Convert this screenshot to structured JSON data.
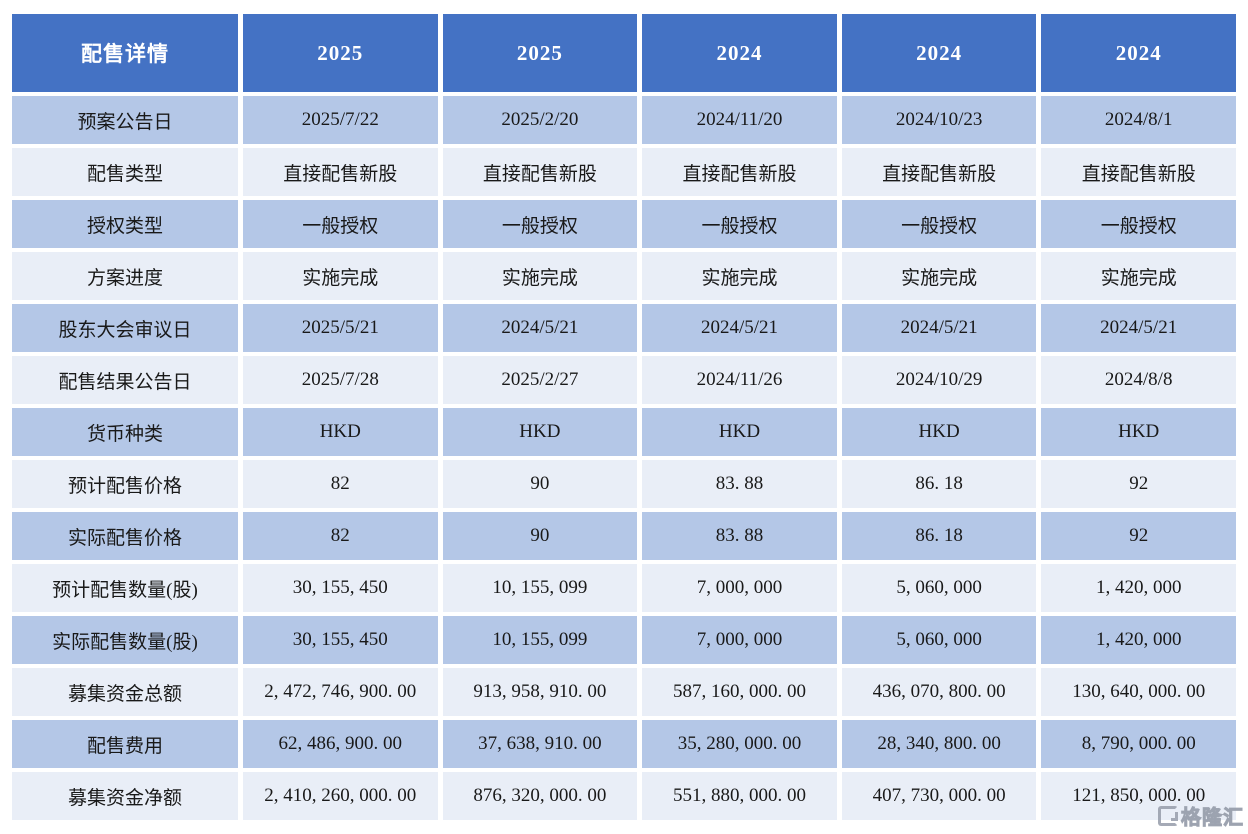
{
  "colors": {
    "header_bg": "#4472C4",
    "header_text": "#FFFFFF",
    "row_odd_bg": "#B4C7E7",
    "row_even_bg": "#E9EEF7",
    "cell_text": "#191919"
  },
  "watermark": {
    "text": "格隆汇"
  },
  "table": {
    "header": {
      "label": "配售详情",
      "columns": [
        "2025",
        "2025",
        "2024",
        "2024",
        "2024"
      ]
    },
    "rows": [
      {
        "label": "预案公告日",
        "values": [
          "2025/7/22",
          "2025/2/20",
          "2024/11/20",
          "2024/10/23",
          "2024/8/1"
        ]
      },
      {
        "label": "配售类型",
        "values": [
          "直接配售新股",
          "直接配售新股",
          "直接配售新股",
          "直接配售新股",
          "直接配售新股"
        ]
      },
      {
        "label": "授权类型",
        "values": [
          "一般授权",
          "一般授权",
          "一般授权",
          "一般授权",
          "一般授权"
        ]
      },
      {
        "label": "方案进度",
        "values": [
          "实施完成",
          "实施完成",
          "实施完成",
          "实施完成",
          "实施完成"
        ]
      },
      {
        "label": "股东大会审议日",
        "values": [
          "2025/5/21",
          "2024/5/21",
          "2024/5/21",
          "2024/5/21",
          "2024/5/21"
        ]
      },
      {
        "label": "配售结果公告日",
        "values": [
          "2025/7/28",
          "2025/2/27",
          "2024/11/26",
          "2024/10/29",
          "2024/8/8"
        ]
      },
      {
        "label": "货币种类",
        "values": [
          "HKD",
          "HKD",
          "HKD",
          "HKD",
          "HKD"
        ]
      },
      {
        "label": "预计配售价格",
        "values": [
          "82",
          "90",
          "83. 88",
          "86. 18",
          "92"
        ]
      },
      {
        "label": "实际配售价格",
        "values": [
          "82",
          "90",
          "83. 88",
          "86. 18",
          "92"
        ]
      },
      {
        "label": "预计配售数量(股)",
        "values": [
          "30, 155, 450",
          "10, 155, 099",
          "7, 000, 000",
          "5, 060, 000",
          "1, 420, 000"
        ]
      },
      {
        "label": "实际配售数量(股)",
        "values": [
          "30, 155, 450",
          "10, 155, 099",
          "7, 000, 000",
          "5, 060, 000",
          "1, 420, 000"
        ]
      },
      {
        "label": "募集资金总额",
        "values": [
          "2, 472, 746, 900. 00",
          "913, 958, 910. 00",
          "587, 160, 000. 00",
          "436, 070, 800. 00",
          "130, 640, 000. 00"
        ]
      },
      {
        "label": "配售费用",
        "values": [
          "62, 486, 900. 00",
          "37, 638, 910. 00",
          "35, 280, 000. 00",
          "28, 340, 800. 00",
          "8, 790, 000. 00"
        ]
      },
      {
        "label": "募集资金净额",
        "values": [
          "2, 410, 260, 000. 00",
          "876, 320, 000. 00",
          "551, 880, 000. 00",
          "407, 730, 000. 00",
          "121, 850, 000. 00"
        ]
      }
    ]
  },
  "chart_data": {
    "type": "table",
    "title": "配售详情",
    "columns": [
      "配售详情",
      "2025",
      "2025",
      "2024",
      "2024",
      "2024"
    ],
    "rows": [
      [
        "预案公告日",
        "2025/7/22",
        "2025/2/20",
        "2024/11/20",
        "2024/10/23",
        "2024/8/1"
      ],
      [
        "配售类型",
        "直接配售新股",
        "直接配售新股",
        "直接配售新股",
        "直接配售新股",
        "直接配售新股"
      ],
      [
        "授权类型",
        "一般授权",
        "一般授权",
        "一般授权",
        "一般授权",
        "一般授权"
      ],
      [
        "方案进度",
        "实施完成",
        "实施完成",
        "实施完成",
        "实施完成",
        "实施完成"
      ],
      [
        "股东大会审议日",
        "2025/5/21",
        "2024/5/21",
        "2024/5/21",
        "2024/5/21",
        "2024/5/21"
      ],
      [
        "配售结果公告日",
        "2025/7/28",
        "2025/2/27",
        "2024/11/26",
        "2024/10/29",
        "2024/8/8"
      ],
      [
        "货币种类",
        "HKD",
        "HKD",
        "HKD",
        "HKD",
        "HKD"
      ],
      [
        "预计配售价格",
        82,
        90,
        83.88,
        86.18,
        92
      ],
      [
        "实际配售价格",
        82,
        90,
        83.88,
        86.18,
        92
      ],
      [
        "预计配售数量(股)",
        30155450,
        10155099,
        7000000,
        5060000,
        1420000
      ],
      [
        "实际配售数量(股)",
        30155450,
        10155099,
        7000000,
        5060000,
        1420000
      ],
      [
        "募集资金总额",
        2472746900.0,
        913958910.0,
        587160000.0,
        436070800.0,
        130640000.0
      ],
      [
        "配售费用",
        62486900.0,
        37638910.0,
        35280000.0,
        28340800.0,
        8790000.0
      ],
      [
        "募集资金净额",
        2410260000.0,
        876320000.0,
        551880000.0,
        407730000.0,
        121850000.0
      ]
    ]
  }
}
